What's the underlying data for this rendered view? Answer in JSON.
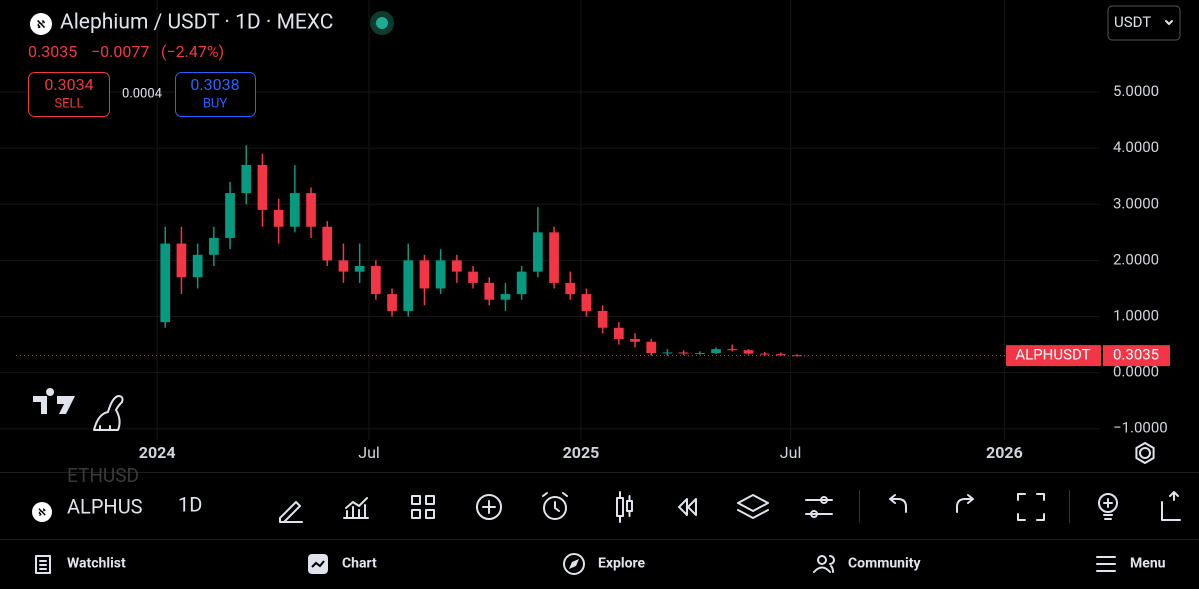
{
  "header": {
    "title": "Alephium / USDT · 1D · MEXC",
    "price": "0.3035",
    "change": "−0.0077",
    "change_pct": "(−2.47%)",
    "currency": "USDT"
  },
  "trade": {
    "sell_price": "0.3034",
    "sell_label": "SELL",
    "spread": "0.0004",
    "buy_price": "0.3038",
    "buy_label": "BUY"
  },
  "chart_data": {
    "type": "candlestick",
    "up_color": "#089981",
    "down_color": "#f23645",
    "open": [
      0.9,
      2.3,
      1.7,
      2.1,
      2.4,
      3.2,
      3.7,
      2.9,
      2.6,
      3.2,
      2.6,
      2.0,
      1.8,
      1.9,
      1.4,
      1.1,
      2.0,
      1.5,
      2.0,
      1.8,
      1.6,
      1.3,
      1.4,
      1.8,
      2.5,
      1.6,
      1.4,
      1.1,
      0.8,
      0.6,
      0.55,
      0.35,
      0.36,
      0.34,
      0.35,
      0.42,
      0.4,
      0.34,
      0.33,
      0.31
    ],
    "high": [
      2.6,
      2.6,
      2.3,
      2.6,
      3.4,
      4.05,
      3.9,
      3.1,
      3.7,
      3.3,
      2.7,
      2.3,
      2.3,
      2.0,
      1.5,
      2.3,
      2.1,
      2.2,
      2.1,
      1.9,
      1.7,
      1.6,
      1.9,
      2.95,
      2.6,
      1.8,
      1.5,
      1.2,
      0.9,
      0.7,
      0.6,
      0.42,
      0.4,
      0.38,
      0.45,
      0.5,
      0.42,
      0.37,
      0.36,
      0.33
    ],
    "low": [
      0.8,
      1.4,
      1.5,
      1.9,
      2.2,
      3.0,
      2.6,
      2.3,
      2.5,
      2.4,
      1.9,
      1.6,
      1.6,
      1.3,
      1.0,
      1.0,
      1.2,
      1.4,
      1.6,
      1.5,
      1.2,
      1.1,
      1.3,
      1.7,
      1.5,
      1.3,
      1.0,
      0.7,
      0.5,
      0.45,
      0.3,
      0.3,
      0.31,
      0.32,
      0.33,
      0.38,
      0.32,
      0.3,
      0.3,
      0.29
    ],
    "close": [
      2.3,
      1.7,
      2.1,
      2.4,
      3.2,
      3.7,
      2.9,
      2.6,
      3.2,
      2.6,
      2.0,
      1.8,
      1.9,
      1.4,
      1.1,
      2.0,
      1.5,
      2.0,
      1.8,
      1.6,
      1.3,
      1.4,
      1.8,
      2.5,
      1.6,
      1.4,
      1.1,
      0.8,
      0.6,
      0.55,
      0.35,
      0.36,
      0.34,
      0.35,
      0.42,
      0.4,
      0.34,
      0.33,
      0.31,
      0.3035
    ],
    "xlim": [
      -9.7,
      58.2
    ],
    "xticks": [
      {
        "value": 0,
        "label": "2024"
      },
      {
        "value": 13.08,
        "label": "Jul"
      },
      {
        "value": 26.16,
        "label": "2025"
      },
      {
        "value": 39.1,
        "label": "Jul"
      },
      {
        "value": 52.3,
        "label": "2026"
      }
    ],
    "ylim": [
      -1.2,
      6.64
    ],
    "yticks": [
      {
        "value": 5,
        "label": "5.0000"
      },
      {
        "value": 4,
        "label": "4.0000"
      },
      {
        "value": 3,
        "label": "3.0000"
      },
      {
        "value": 2,
        "label": "2.0000"
      },
      {
        "value": 1,
        "label": "1.0000"
      },
      {
        "value": 0,
        "label": "0.0000"
      },
      {
        "value": -1,
        "label": "−1.0000"
      }
    ],
    "grid": true,
    "last_price": {
      "symbol": "ALPHUSDT",
      "value": 0.3035,
      "color": "#f23645"
    }
  },
  "toolbar": {
    "symbol": "ALPHUS",
    "symbol_behind": "ETHUSD",
    "interval": "1D"
  },
  "nav": [
    "Watchlist",
    "Chart",
    "Explore",
    "Community",
    "Menu"
  ]
}
